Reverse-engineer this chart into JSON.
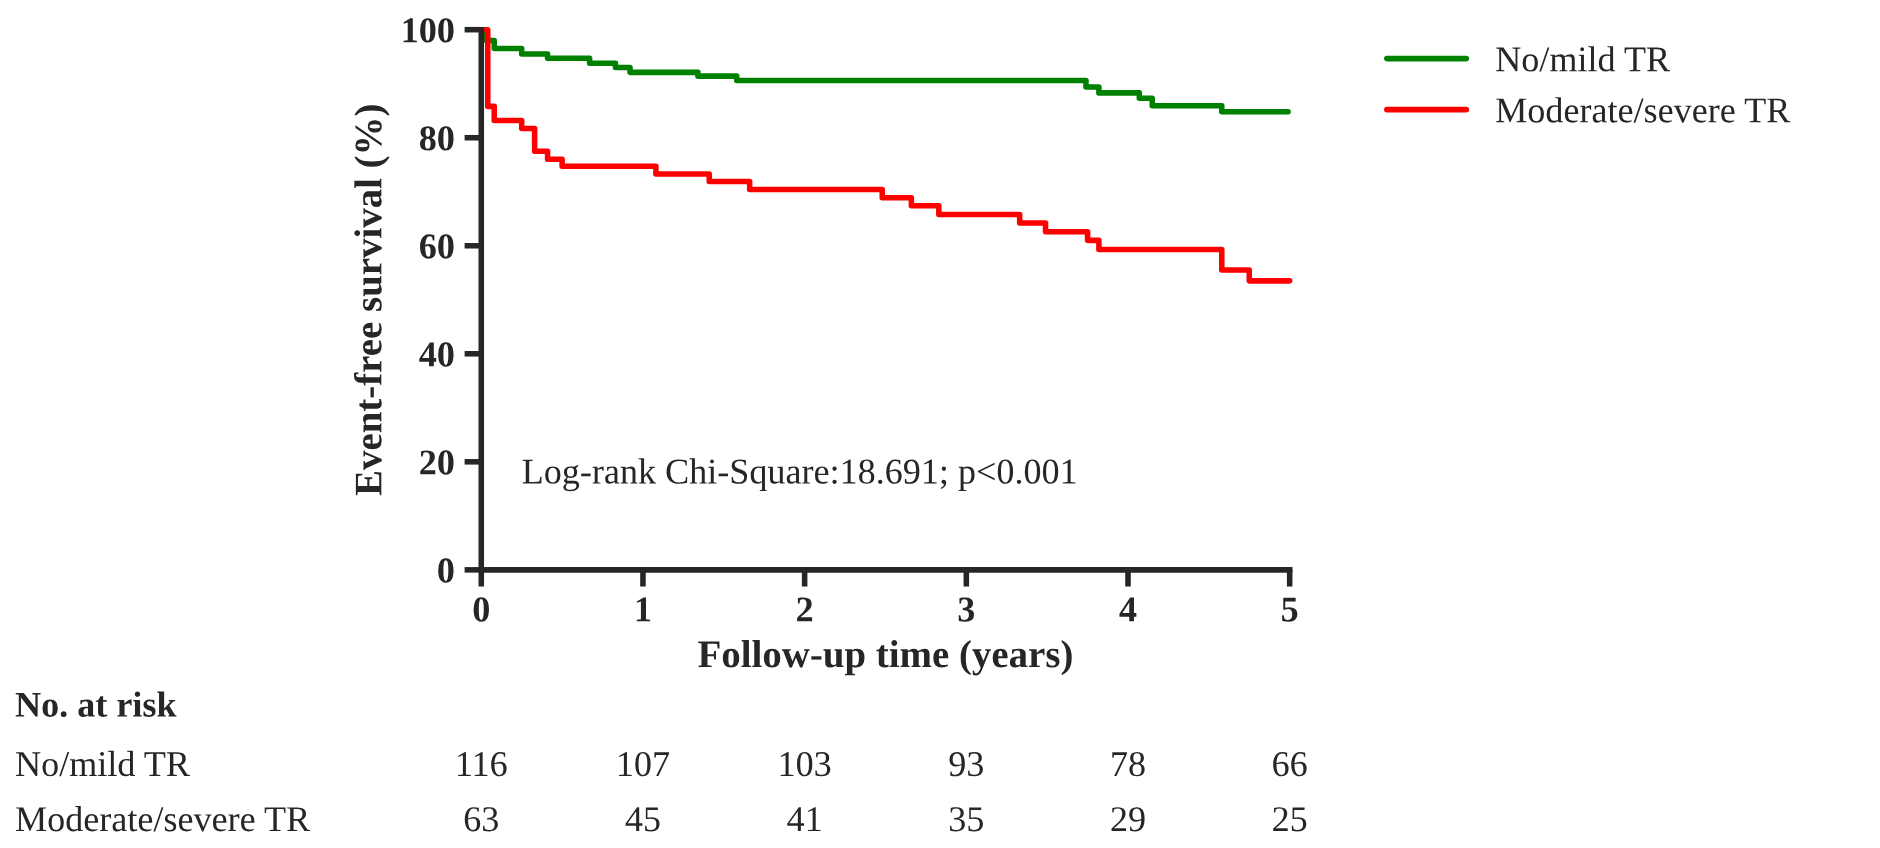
{
  "chart_data": {
    "type": "step",
    "xlabel": "Follow-up time (years)",
    "ylabel": "Event-free survival (%)",
    "xlim": [
      0,
      5
    ],
    "ylim": [
      0,
      100
    ],
    "xticks": [
      0,
      1,
      2,
      3,
      4,
      5
    ],
    "yticks": [
      0,
      20,
      40,
      60,
      80,
      100
    ],
    "grid": false,
    "legend": "top right",
    "series": [
      {
        "name": "No/mild TR",
        "color": "#008000",
        "x": [
          0,
          0.03,
          0.08,
          0.25,
          0.41,
          0.67,
          0.83,
          0.92,
          1.34,
          1.58,
          3.74,
          3.82,
          4.07,
          4.15,
          4.58,
          4.99
        ],
        "values": [
          100,
          98,
          96.5,
          95.5,
          94.7,
          93.8,
          93,
          92.1,
          91.4,
          90.6,
          89.4,
          88.3,
          87.3,
          85.9,
          84.8,
          84.8
        ]
      },
      {
        "name": "Moderate/severe TR",
        "color": "#ff0000",
        "x": [
          0,
          0.04,
          0.08,
          0.25,
          0.33,
          0.41,
          0.5,
          1.08,
          1.41,
          1.66,
          2.48,
          2.66,
          2.83,
          3.33,
          3.49,
          3.75,
          3.82,
          4.58,
          4.75,
          5
        ],
        "values": [
          100,
          85.8,
          83.2,
          81.7,
          77.5,
          76,
          74.7,
          73.3,
          71.9,
          70.4,
          68.9,
          67.4,
          65.8,
          64.2,
          62.6,
          61,
          59.3,
          55.5,
          53.5,
          53.5
        ]
      }
    ],
    "annotations": [
      "Log-rank Chi-Square:18.691; p<0.001",
      "No. at risk",
      "No/mild TR",
      "116",
      "107",
      "103",
      "93",
      "78",
      "66",
      "Moderate/severe TR",
      "63",
      "45",
      "41",
      "35",
      "29",
      "25"
    ]
  }
}
